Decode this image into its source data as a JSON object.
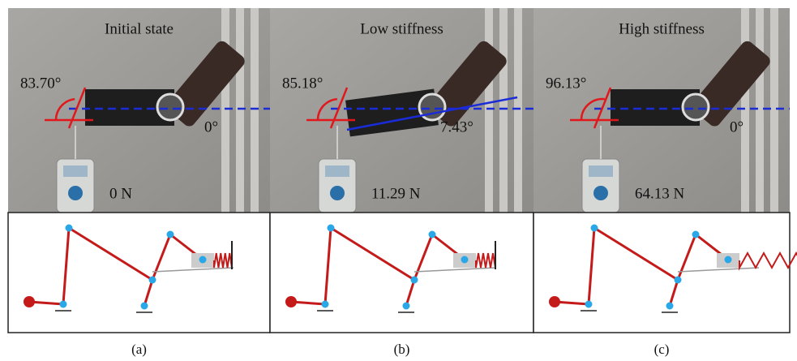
{
  "panels": [
    {
      "title": "Initial state",
      "angle": "83.70°",
      "offset_angle": "0°",
      "force": "0 N",
      "caption": "(a)"
    },
    {
      "title": "Low stiffness",
      "angle": "85.18°",
      "offset_angle": "7.43°",
      "force": "11.29 N",
      "caption": "(b)"
    },
    {
      "title": "High stiffness",
      "angle": "96.13°",
      "offset_angle": "0°",
      "force": "64.13 N",
      "caption": "(c)"
    }
  ]
}
